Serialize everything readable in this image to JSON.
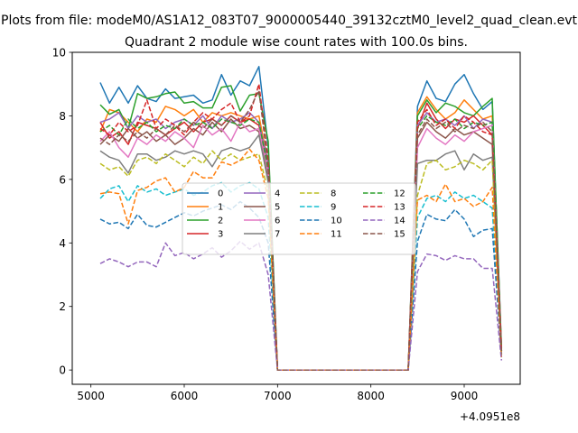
{
  "chart_data": {
    "type": "line",
    "suptitle": "Plots from file: modeM0/AS1A12_083T07_9000005440_39132cztM0_level2_quad_clean.evt",
    "title": "Quadrant 2 module wise count rates with 100.0s bins.",
    "xlabel": "",
    "ylabel": "",
    "x_offset_label": "+4.0951e8",
    "x_offset": 409510000,
    "xlim": [
      4800,
      9600
    ],
    "ylim": [
      -0.45,
      10.0
    ],
    "x_ticks": [
      5000,
      6000,
      7000,
      8000,
      9000
    ],
    "x_tick_labels": [
      "5000",
      "6000",
      "7000",
      "8000",
      "9000"
    ],
    "y_ticks": [
      0,
      2,
      4,
      6,
      8,
      10
    ],
    "y_tick_labels": [
      "0",
      "2",
      "4",
      "6",
      "8",
      "10"
    ],
    "grid": false,
    "legend_position": "center",
    "legend_columns": 4,
    "x": [
      5100,
      5200,
      5300,
      5400,
      5500,
      5600,
      5700,
      5800,
      5900,
      6000,
      6100,
      6200,
      6300,
      6400,
      6500,
      6600,
      6700,
      6800,
      6900,
      7000,
      7100,
      7200,
      7300,
      7400,
      7500,
      7600,
      7700,
      7800,
      7900,
      8000,
      8100,
      8200,
      8300,
      8400,
      8500,
      8600,
      8700,
      8800,
      8900,
      9000,
      9100,
      9200,
      9300,
      9400
    ],
    "series": [
      {
        "name": "0",
        "color": "#1f77b4",
        "dash": "solid",
        "values": [
          9.05,
          8.4,
          8.9,
          8.4,
          8.95,
          8.55,
          8.45,
          8.85,
          8.55,
          8.6,
          8.65,
          8.4,
          8.5,
          9.3,
          8.65,
          9.1,
          8.95,
          9.55,
          7.0,
          0,
          0,
          0,
          0,
          0,
          0,
          0,
          0,
          0,
          0,
          0,
          0,
          0,
          0,
          0,
          8.3,
          9.1,
          8.55,
          8.45,
          9.0,
          9.3,
          8.7,
          8.2,
          8.45,
          0.7
        ]
      },
      {
        "name": "1",
        "color": "#ff7f0e",
        "dash": "solid",
        "values": [
          7.5,
          8.2,
          8.1,
          7.8,
          7.5,
          7.9,
          7.8,
          8.3,
          8.2,
          8.0,
          8.2,
          7.8,
          8.1,
          8.0,
          8.1,
          8.0,
          7.9,
          8.0,
          6.5,
          0,
          0,
          0,
          0,
          0,
          0,
          0,
          0,
          0,
          0,
          0,
          0,
          0,
          0,
          0,
          8.1,
          8.6,
          8.2,
          7.9,
          8.1,
          8.5,
          8.2,
          7.9,
          8.0,
          0.7
        ]
      },
      {
        "name": "2",
        "color": "#2ca02c",
        "dash": "solid",
        "values": [
          8.35,
          8.05,
          8.2,
          7.6,
          8.7,
          8.55,
          8.6,
          8.7,
          8.75,
          8.4,
          8.45,
          8.25,
          8.25,
          8.9,
          8.95,
          8.15,
          8.65,
          8.7,
          7.2,
          0,
          0,
          0,
          0,
          0,
          0,
          0,
          0,
          0,
          0,
          0,
          0,
          0,
          0,
          0,
          8.0,
          8.5,
          8.1,
          8.4,
          8.3,
          8.1,
          8.0,
          8.3,
          8.55,
          0.6
        ]
      },
      {
        "name": "3",
        "color": "#d62728",
        "dash": "solid",
        "values": [
          7.8,
          7.3,
          7.5,
          7.1,
          7.8,
          7.7,
          7.6,
          7.4,
          7.6,
          7.8,
          7.5,
          7.8,
          7.9,
          7.7,
          8.0,
          7.8,
          7.9,
          7.7,
          6.2,
          0,
          0,
          0,
          0,
          0,
          0,
          0,
          0,
          0,
          0,
          0,
          0,
          0,
          0,
          0,
          7.6,
          8.4,
          7.9,
          7.6,
          7.9,
          7.8,
          8.0,
          7.7,
          7.4,
          0.6
        ]
      },
      {
        "name": "4",
        "color": "#9467bd",
        "dash": "solid",
        "values": [
          7.8,
          7.9,
          8.1,
          7.6,
          8.0,
          7.8,
          7.9,
          7.6,
          7.8,
          7.9,
          7.7,
          8.0,
          7.6,
          8.0,
          7.8,
          7.9,
          8.1,
          7.8,
          6.5,
          0,
          0,
          0,
          0,
          0,
          0,
          0,
          0,
          0,
          0,
          0,
          0,
          0,
          0,
          0,
          7.7,
          8.1,
          7.8,
          7.9,
          7.7,
          8.0,
          7.6,
          7.9,
          7.8,
          0.6
        ]
      },
      {
        "name": "5",
        "color": "#8c564b",
        "dash": "solid",
        "values": [
          7.1,
          7.4,
          7.2,
          7.6,
          7.3,
          7.5,
          7.2,
          7.4,
          7.1,
          7.3,
          7.6,
          7.4,
          7.8,
          7.5,
          7.9,
          7.6,
          7.7,
          7.5,
          6.0,
          0,
          0,
          0,
          0,
          0,
          0,
          0,
          0,
          0,
          0,
          0,
          0,
          0,
          0,
          0,
          7.3,
          7.8,
          7.5,
          7.3,
          7.6,
          7.4,
          7.5,
          7.3,
          7.1,
          0.5
        ]
      },
      {
        "name": "6",
        "color": "#e377c2",
        "dash": "solid",
        "values": [
          7.2,
          7.5,
          7.0,
          6.7,
          7.3,
          7.1,
          7.4,
          7.2,
          7.5,
          7.3,
          7.0,
          7.7,
          7.4,
          7.6,
          7.2,
          7.8,
          7.5,
          7.6,
          6.2,
          0,
          0,
          0,
          0,
          0,
          0,
          0,
          0,
          0,
          0,
          0,
          0,
          0,
          0,
          0,
          7.0,
          7.6,
          7.3,
          7.1,
          7.4,
          7.2,
          7.5,
          7.6,
          7.7,
          0.5
        ]
      },
      {
        "name": "7",
        "color": "#7f7f7f",
        "dash": "solid",
        "values": [
          6.9,
          6.7,
          6.6,
          6.2,
          6.8,
          6.8,
          6.6,
          6.7,
          6.9,
          6.8,
          6.9,
          6.8,
          6.4,
          6.9,
          7.0,
          6.9,
          7.0,
          7.4,
          5.9,
          0,
          0,
          0,
          0,
          0,
          0,
          0,
          0,
          0,
          0,
          0,
          0,
          0,
          0,
          0,
          6.5,
          6.6,
          6.6,
          6.8,
          6.9,
          6.3,
          6.8,
          6.6,
          6.7,
          0.5
        ]
      },
      {
        "name": "8",
        "color": "#bcbd22",
        "dash": "dashed",
        "values": [
          6.5,
          6.3,
          6.4,
          6.1,
          6.6,
          6.7,
          6.5,
          6.8,
          6.6,
          6.4,
          6.7,
          6.5,
          6.9,
          6.6,
          6.8,
          6.6,
          6.7,
          6.8,
          5.6,
          0,
          0,
          0,
          0,
          0,
          0,
          0,
          0,
          0,
          0,
          0,
          0,
          0,
          0,
          0,
          5.5,
          6.5,
          6.6,
          6.3,
          6.4,
          6.6,
          6.5,
          6.3,
          6.6,
          0.5
        ]
      },
      {
        "name": "9",
        "color": "#17becf",
        "dash": "dashed",
        "values": [
          5.4,
          5.7,
          5.8,
          5.3,
          5.8,
          5.6,
          5.7,
          5.5,
          5.6,
          5.7,
          5.5,
          5.6,
          5.8,
          5.9,
          5.6,
          5.8,
          5.9,
          5.7,
          4.8,
          0,
          0,
          0,
          0,
          0,
          0,
          0,
          0,
          0,
          0,
          0,
          0,
          0,
          0,
          0,
          4.8,
          5.4,
          5.5,
          5.3,
          5.6,
          5.4,
          5.5,
          5.3,
          5.1,
          0.4
        ]
      },
      {
        "name": "10",
        "color": "#1f77b4",
        "dash": "dashed",
        "values": [
          4.75,
          4.6,
          4.65,
          4.45,
          4.9,
          4.55,
          4.5,
          4.65,
          4.8,
          4.95,
          4.85,
          5.0,
          5.1,
          5.2,
          5.05,
          5.3,
          5.1,
          4.8,
          4.0,
          0,
          0,
          0,
          0,
          0,
          0,
          0,
          0,
          0,
          0,
          0,
          0,
          0,
          0,
          0,
          4.05,
          4.9,
          4.75,
          4.7,
          5.05,
          4.75,
          4.2,
          4.4,
          4.45,
          0.4
        ]
      },
      {
        "name": "11",
        "color": "#ff7f0e",
        "dash": "dashed",
        "values": [
          5.55,
          5.6,
          5.55,
          4.6,
          5.65,
          5.75,
          5.95,
          6.05,
          5.6,
          5.75,
          6.25,
          6.05,
          6.05,
          6.55,
          6.45,
          6.6,
          6.95,
          6.6,
          5.4,
          0,
          0,
          0,
          0,
          0,
          0,
          0,
          0,
          0,
          0,
          0,
          0,
          0,
          0,
          0,
          5.35,
          5.5,
          5.3,
          5.85,
          5.3,
          5.4,
          5.15,
          5.3,
          5.75,
          0.4
        ]
      },
      {
        "name": "12",
        "color": "#2ca02c",
        "dash": "dashed",
        "values": [
          7.5,
          7.7,
          7.4,
          7.9,
          7.6,
          7.8,
          7.5,
          7.7,
          7.6,
          7.9,
          7.7,
          7.8,
          7.6,
          7.9,
          7.8,
          7.7,
          7.9,
          7.8,
          6.3,
          0,
          0,
          0,
          0,
          0,
          0,
          0,
          0,
          0,
          0,
          0,
          0,
          0,
          0,
          0,
          7.6,
          8.0,
          7.8,
          7.7,
          7.9,
          7.6,
          7.8,
          7.7,
          7.8,
          0.6
        ]
      },
      {
        "name": "13",
        "color": "#d62728",
        "dash": "dashed",
        "values": [
          7.6,
          7.4,
          7.8,
          7.5,
          7.7,
          8.5,
          7.6,
          7.9,
          7.7,
          7.4,
          7.8,
          8.1,
          7.9,
          8.2,
          8.4,
          7.8,
          8.0,
          9.0,
          6.6,
          0,
          0,
          0,
          0,
          0,
          0,
          0,
          0,
          0,
          0,
          0,
          0,
          0,
          0,
          0,
          7.8,
          8.2,
          7.7,
          7.9,
          7.6,
          8.0,
          7.8,
          7.5,
          7.4,
          0.6
        ]
      },
      {
        "name": "14",
        "color": "#9467bd",
        "dash": "dashed",
        "values": [
          3.35,
          3.5,
          3.4,
          3.25,
          3.4,
          3.4,
          3.25,
          4.0,
          3.6,
          3.7,
          3.5,
          3.65,
          3.85,
          3.55,
          3.75,
          4.05,
          3.8,
          4.0,
          3.0,
          0,
          0,
          0,
          0,
          0,
          0,
          0,
          0,
          0,
          0,
          0,
          0,
          0,
          0,
          0,
          3.1,
          3.65,
          3.6,
          3.45,
          3.6,
          3.5,
          3.5,
          3.2,
          3.2,
          0.3
        ]
      },
      {
        "name": "15",
        "color": "#8c564b",
        "dash": "dashed",
        "values": [
          7.3,
          7.1,
          7.4,
          7.2,
          7.5,
          7.3,
          7.6,
          7.4,
          7.7,
          7.5,
          7.8,
          7.6,
          7.9,
          7.7,
          8.0,
          7.8,
          8.2,
          8.8,
          6.4,
          0,
          0,
          0,
          0,
          0,
          0,
          0,
          0,
          0,
          0,
          0,
          0,
          0,
          0,
          0,
          7.4,
          7.9,
          7.6,
          7.8,
          7.5,
          7.7,
          7.6,
          7.8,
          7.5,
          0.5
        ]
      }
    ]
  }
}
